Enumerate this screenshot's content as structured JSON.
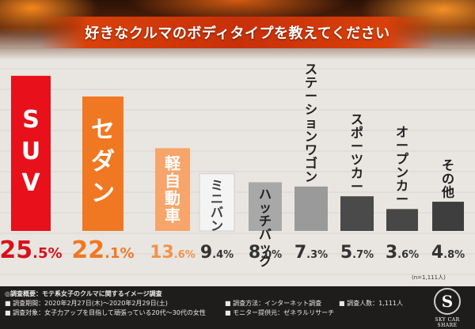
{
  "title": "好きなクルマのボディタイプを教えてください",
  "chart_data": {
    "type": "bar",
    "title": "好きなクルマのボディタイプを教えてください",
    "categories": [
      "SUV",
      "セダン",
      "軽自動車",
      "ミニバン",
      "ハッチバック",
      "ステーションワゴン",
      "スポーツカー",
      "オープンカー",
      "その他"
    ],
    "values": [
      25.5,
      22.1,
      13.6,
      9.4,
      8.0,
      7.3,
      5.7,
      3.6,
      4.8
    ],
    "value_labels": [
      "25.5%",
      "22.1%",
      "13.6%",
      "9.4%",
      "8.0%",
      "7.3%",
      "5.7%",
      "3.6%",
      "4.8%"
    ],
    "ylim": [
      0,
      26
    ],
    "grid": false,
    "colors": [
      "#e8101a",
      "#f07822",
      "#f7a56a",
      "#f4f4f4",
      "#a8a8a8",
      "#9a9a9a",
      "#4a4a4a",
      "#474747",
      "#3e3e3e"
    ],
    "label_colors": [
      "#ffffff",
      "#ffffff",
      "#ffffff",
      "#3c3c3c",
      "#1e1e1e",
      "#1e1e1e",
      "#1e1e1e",
      "#1e1e1e",
      "#1e1e1e"
    ],
    "value_colors": [
      "#d8101a",
      "#f07822",
      "#f2924a",
      "#333333",
      "#333333",
      "#333333",
      "#333333",
      "#333333",
      "#333333"
    ],
    "label_position": [
      "inside",
      "inside",
      "inside",
      "inside",
      "inside",
      "above",
      "above",
      "above",
      "above"
    ],
    "sample_note": "(n=1,111人)"
  },
  "footer": {
    "summary": "◎調査概要：モテ系女子のクルマに関するイメージ調査",
    "period": "■ 調査期間：2020年2月27日(木)～2020年2月29日(土)",
    "target": "■ 調査対象：女子力アップを目指して頑張っている20代～30代の女性",
    "method": "■ 調査方法：インターネット調査",
    "provider": "■ モニター提供元：ゼネラルリサーチ",
    "count": "■ 調査人数：1,111人"
  },
  "logo": {
    "mark": "S",
    "brand": "SKY CAR SHARE"
  }
}
